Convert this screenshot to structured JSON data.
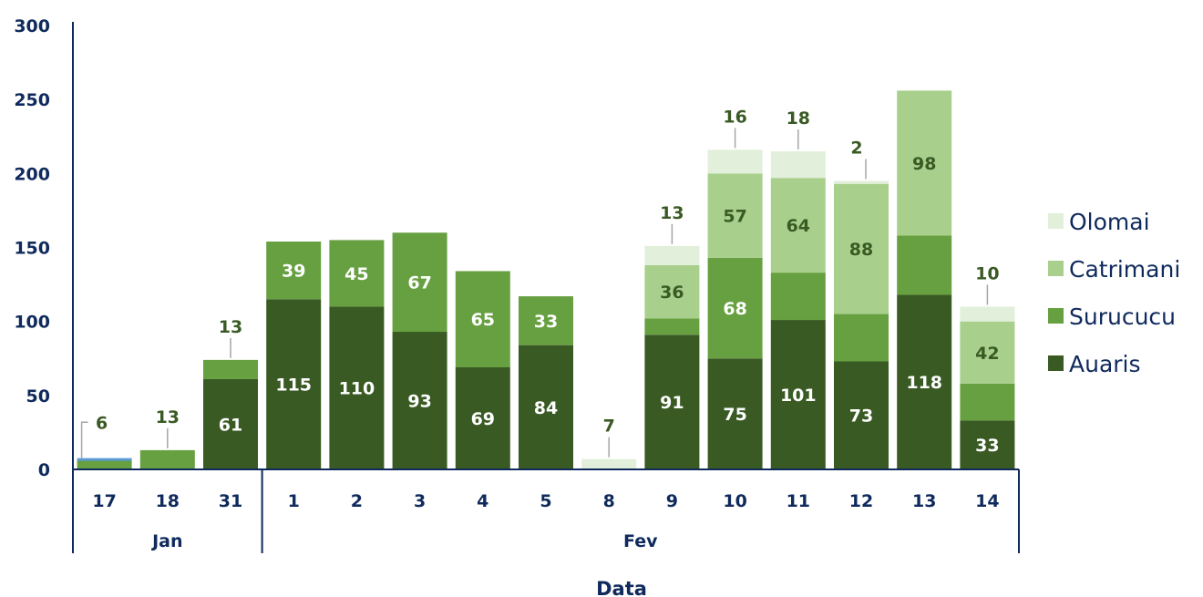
{
  "chart_data": {
    "type": "bar",
    "stacked": true,
    "xlabel": "Data",
    "ylabel": "",
    "ylim": [
      0,
      300
    ],
    "yticks": [
      0,
      50,
      100,
      150,
      200,
      250,
      300
    ],
    "categories": [
      "17",
      "18",
      "31",
      "1",
      "2",
      "3",
      "4",
      "5",
      "8",
      "9",
      "10",
      "11",
      "12",
      "13",
      "14"
    ],
    "groups": [
      {
        "label": "Jan",
        "categories": [
          "17",
          "18",
          "31"
        ]
      },
      {
        "label": "Fev",
        "categories": [
          "1",
          "2",
          "3",
          "4",
          "5",
          "8",
          "9",
          "10",
          "11",
          "12",
          "13",
          "14"
        ]
      }
    ],
    "series": [
      {
        "name": "Auaris",
        "color": "#3a5a24",
        "values": [
          0,
          0,
          61,
          115,
          110,
          93,
          69,
          84,
          0,
          91,
          75,
          101,
          73,
          118,
          33
        ],
        "labels": [
          "",
          "",
          "61",
          "115",
          "110",
          "93",
          "69",
          "84",
          "",
          "91",
          "75",
          "101",
          "73",
          "118",
          "33"
        ]
      },
      {
        "name": "Surucucu",
        "color": "#67a040",
        "values": [
          6,
          13,
          13,
          39,
          45,
          67,
          65,
          33,
          0,
          11,
          68,
          32,
          32,
          40,
          25
        ],
        "labels": [
          "6",
          "13",
          "13",
          "39",
          "45",
          "67",
          "65",
          "33",
          "",
          "",
          "68",
          "",
          "",
          "",
          ""
        ]
      },
      {
        "name": "Catrimani",
        "color": "#a8d08c",
        "values": [
          0,
          0,
          0,
          0,
          0,
          0,
          0,
          0,
          0,
          36,
          57,
          64,
          88,
          98,
          42
        ],
        "labels": [
          "",
          "",
          "",
          "",
          "",
          "",
          "",
          "",
          "",
          "36",
          "57",
          "64",
          "88",
          "98",
          "42"
        ]
      },
      {
        "name": "Olomai",
        "color": "#e2efda",
        "values": [
          0,
          0,
          0,
          0,
          0,
          0,
          0,
          0,
          7,
          13,
          16,
          18,
          2,
          0,
          10
        ],
        "labels": [
          "",
          "",
          "",
          "",
          "",
          "",
          "",
          "",
          "7",
          "13",
          "16",
          "18",
          "2",
          "",
          "10"
        ]
      }
    ],
    "extra_segment_on_17": {
      "value": 1,
      "color": "#5b9bd5"
    },
    "legend_position": "right",
    "grid": false
  }
}
